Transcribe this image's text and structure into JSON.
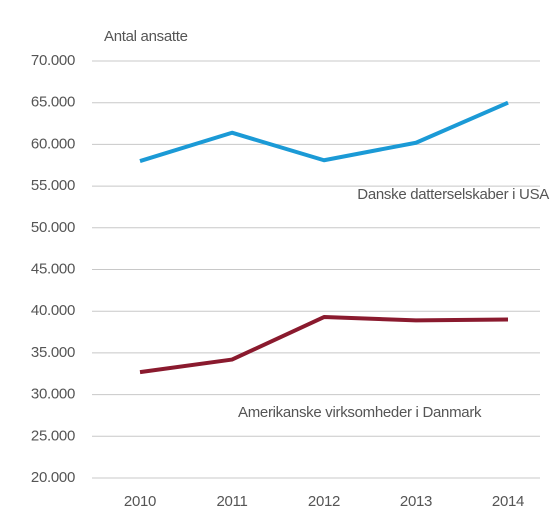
{
  "chart_data": {
    "type": "line",
    "y_axis_label": "Antal ansatte",
    "categories": [
      "2010",
      "2011",
      "2012",
      "2013",
      "2014"
    ],
    "series": [
      {
        "name": "Danske datterselskaber i USA",
        "color": "#1b9ad6",
        "values": [
          58000,
          61400,
          58100,
          60200,
          65000
        ]
      },
      {
        "name": "Amerikanske virksomheder i Danmark",
        "color": "#8a1a2e",
        "values": [
          32700,
          34200,
          39300,
          38900,
          39000
        ]
      }
    ],
    "ylim": [
      20000,
      70000
    ],
    "yticks": [
      {
        "value": 20000,
        "label": "20.000"
      },
      {
        "value": 25000,
        "label": "25.000"
      },
      {
        "value": 30000,
        "label": "30.000"
      },
      {
        "value": 35000,
        "label": "35.000"
      },
      {
        "value": 40000,
        "label": "40.000"
      },
      {
        "value": 45000,
        "label": "45.000"
      },
      {
        "value": 50000,
        "label": "50.000"
      },
      {
        "value": 55000,
        "label": "55.000"
      },
      {
        "value": 60000,
        "label": "60.000"
      },
      {
        "value": 65000,
        "label": "65.000"
      },
      {
        "value": 70000,
        "label": "70.000"
      }
    ],
    "grid": true
  }
}
